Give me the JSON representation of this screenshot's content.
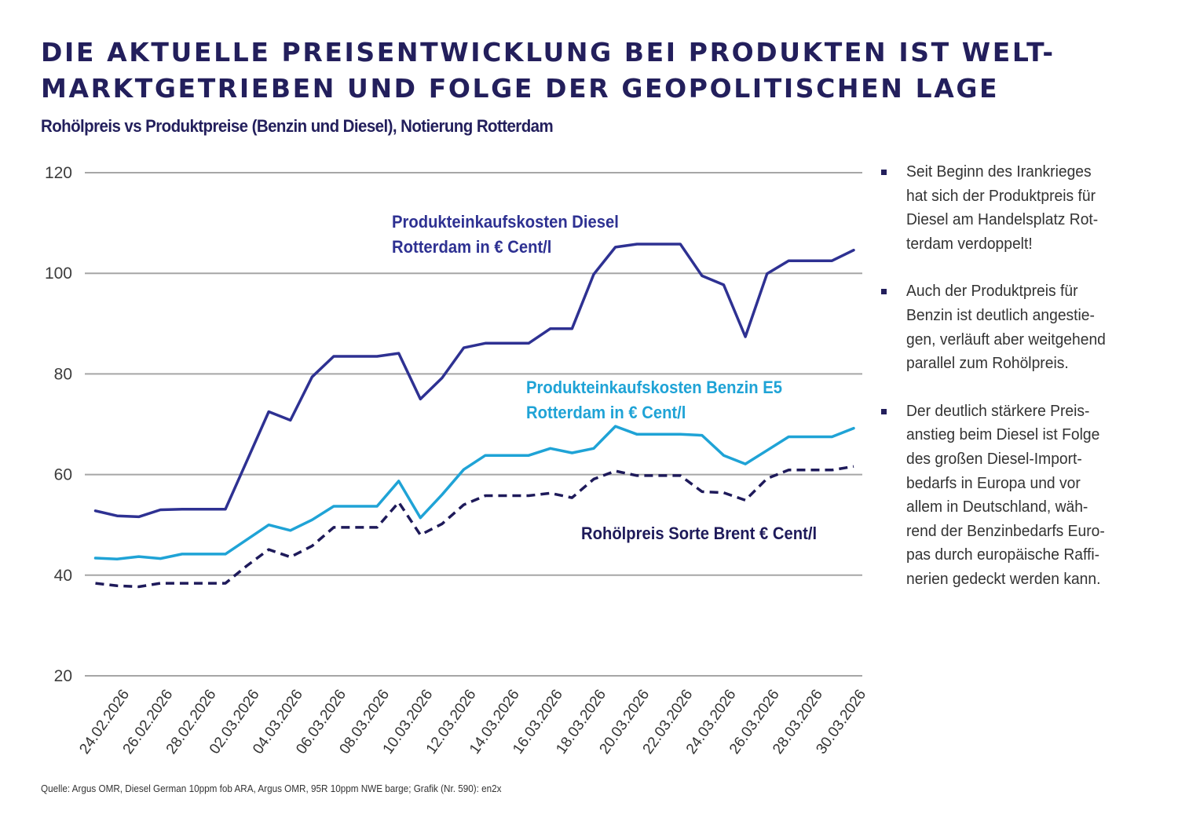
{
  "header": {
    "title_line1": "DIE AKTUELLE PREISENTWICKLUNG BEI PRODUKTEN IST WELT-",
    "title_line2": "MARKTGETRIEBEN UND FOLGE DER GEOPOLITISCHEN LAGE",
    "subtitle": "Rohölpreis vs Produktpreise (Benzin und Diesel), Notierung Rotterdam"
  },
  "colors": {
    "title": "#231f5c",
    "diesel": "#2e3192",
    "benzin": "#1fa3d6",
    "brent": "#1e1a5a",
    "grid": "#a6a6a6",
    "text": "#333333"
  },
  "chart_data": {
    "type": "line",
    "title": "Rohölpreis vs Produktpreise (Benzin und Diesel), Notierung Rotterdam",
    "xlabel": "",
    "ylabel": "",
    "ylim": [
      20,
      120
    ],
    "yticks": [
      20,
      40,
      60,
      80,
      100,
      120
    ],
    "grid": true,
    "x": [
      "23.02.2026",
      "24.02.2026",
      "25.02.2026",
      "26.02.2026",
      "27.02.2026",
      "28.02.2026",
      "01.03.2026",
      "02.03.2026",
      "03.03.2026",
      "04.03.2026",
      "05.03.2026",
      "06.03.2026",
      "07.03.2026",
      "08.03.2026",
      "09.03.2026",
      "10.03.2026",
      "11.03.2026",
      "12.03.2026",
      "13.03.2026",
      "14.03.2026",
      "15.03.2026",
      "16.03.2026",
      "17.03.2026",
      "18.03.2026",
      "19.03.2026",
      "20.03.2026",
      "21.03.2026",
      "22.03.2026",
      "23.03.2026",
      "24.03.2026",
      "25.03.2026",
      "26.03.2026",
      "27.03.2026",
      "28.03.2026",
      "29.03.2026",
      "30.03.2026"
    ],
    "xtick_labels": [
      "24.02.2026",
      "26.02.2026",
      "28.02.2026",
      "02.03.2026",
      "04.03.2026",
      "06.03.2026",
      "08.03.2026",
      "10.03.2026",
      "12.03.2026",
      "14.03.2026",
      "16.03.2026",
      "18.03.2026",
      "20.03.2026",
      "22.03.2026",
      "24.03.2026",
      "26.03.2026",
      "28.03.2026",
      "30.03.2026"
    ],
    "series": [
      {
        "name": "Produkteinkaufskosten Diesel Rotterdam in € Cent/l",
        "label_lines": [
          "Produkteinkaufskosten Diesel",
          "Rotterdam in € Cent/l"
        ],
        "style": "solid",
        "color": "#2e3192",
        "values": [
          52.8,
          51.8,
          51.6,
          53.0,
          53.1,
          53.1,
          53.1,
          62.8,
          72.5,
          70.8,
          79.4,
          83.5,
          83.5,
          83.5,
          84.1,
          75.0,
          79.2,
          85.2,
          86.1,
          86.1,
          86.1,
          89.0,
          89.0,
          99.8,
          105.2,
          105.8,
          105.8,
          105.8,
          99.5,
          97.7,
          87.4,
          99.9,
          102.5,
          102.5,
          102.5,
          104.6
        ]
      },
      {
        "name": "Produkteinkaufskosten Benzin E5 Rotterdam in € Cent/l",
        "label_lines": [
          "Produkteinkaufskosten Benzin E5",
          "Rotterdam in € Cent/l"
        ],
        "style": "solid",
        "color": "#1fa3d6",
        "values": [
          43.4,
          43.2,
          43.7,
          43.3,
          44.2,
          44.2,
          44.2,
          47.1,
          50.0,
          48.9,
          51.0,
          53.7,
          53.7,
          53.7,
          58.7,
          51.4,
          56.0,
          61.0,
          63.8,
          63.8,
          63.8,
          65.2,
          64.3,
          65.2,
          69.6,
          68.0,
          68.0,
          68.0,
          67.8,
          63.8,
          62.1,
          64.8,
          67.5,
          67.5,
          67.5,
          69.2
        ]
      },
      {
        "name": "Rohölpreis Sorte Brent € Cent/l",
        "label_lines": [
          "Rohölpreis Sorte Brent € Cent/l"
        ],
        "style": "dashed",
        "color": "#1e1a5a",
        "values": [
          38.4,
          37.9,
          37.7,
          38.4,
          38.4,
          38.4,
          38.4,
          41.9,
          45.1,
          43.6,
          45.8,
          49.5,
          49.5,
          49.5,
          54.5,
          48.0,
          50.2,
          54.0,
          55.8,
          55.8,
          55.8,
          56.3,
          55.4,
          59.1,
          60.7,
          59.8,
          59.8,
          59.8,
          56.6,
          56.4,
          54.9,
          59.2,
          60.9,
          60.9,
          60.9,
          61.6
        ]
      }
    ],
    "legend": "inline-labels"
  },
  "sidebar": {
    "bullets": [
      {
        "text": "Seit Beginn des Irankrieges\nhat sich der Produktpreis für\nDiesel am Handelsplatz Rot-\nterdam verdoppelt!"
      },
      {
        "text": "Auch der Produktpreis für\nBenzin ist deutlich angestie-\ngen, verläuft aber weitgehend\nparallel zum Rohölpreis."
      },
      {
        "text": "Der deutlich stärkere Preis-\nanstieg beim Diesel ist Folge\ndes großen Diesel-Import-\nbedarfs in Europa und vor\nallem in Deutschland, wäh-\nrend der Benzinbedarfs Euro-\npas durch europäische Raffi-\nnerien gedeckt werden kann."
      }
    ]
  },
  "footer": {
    "source": "Quelle: Argus OMR, Diesel German 10ppm fob ARA, Argus OMR, 95R 10ppm NWE barge; Grafik (Nr. 590): en2x"
  }
}
